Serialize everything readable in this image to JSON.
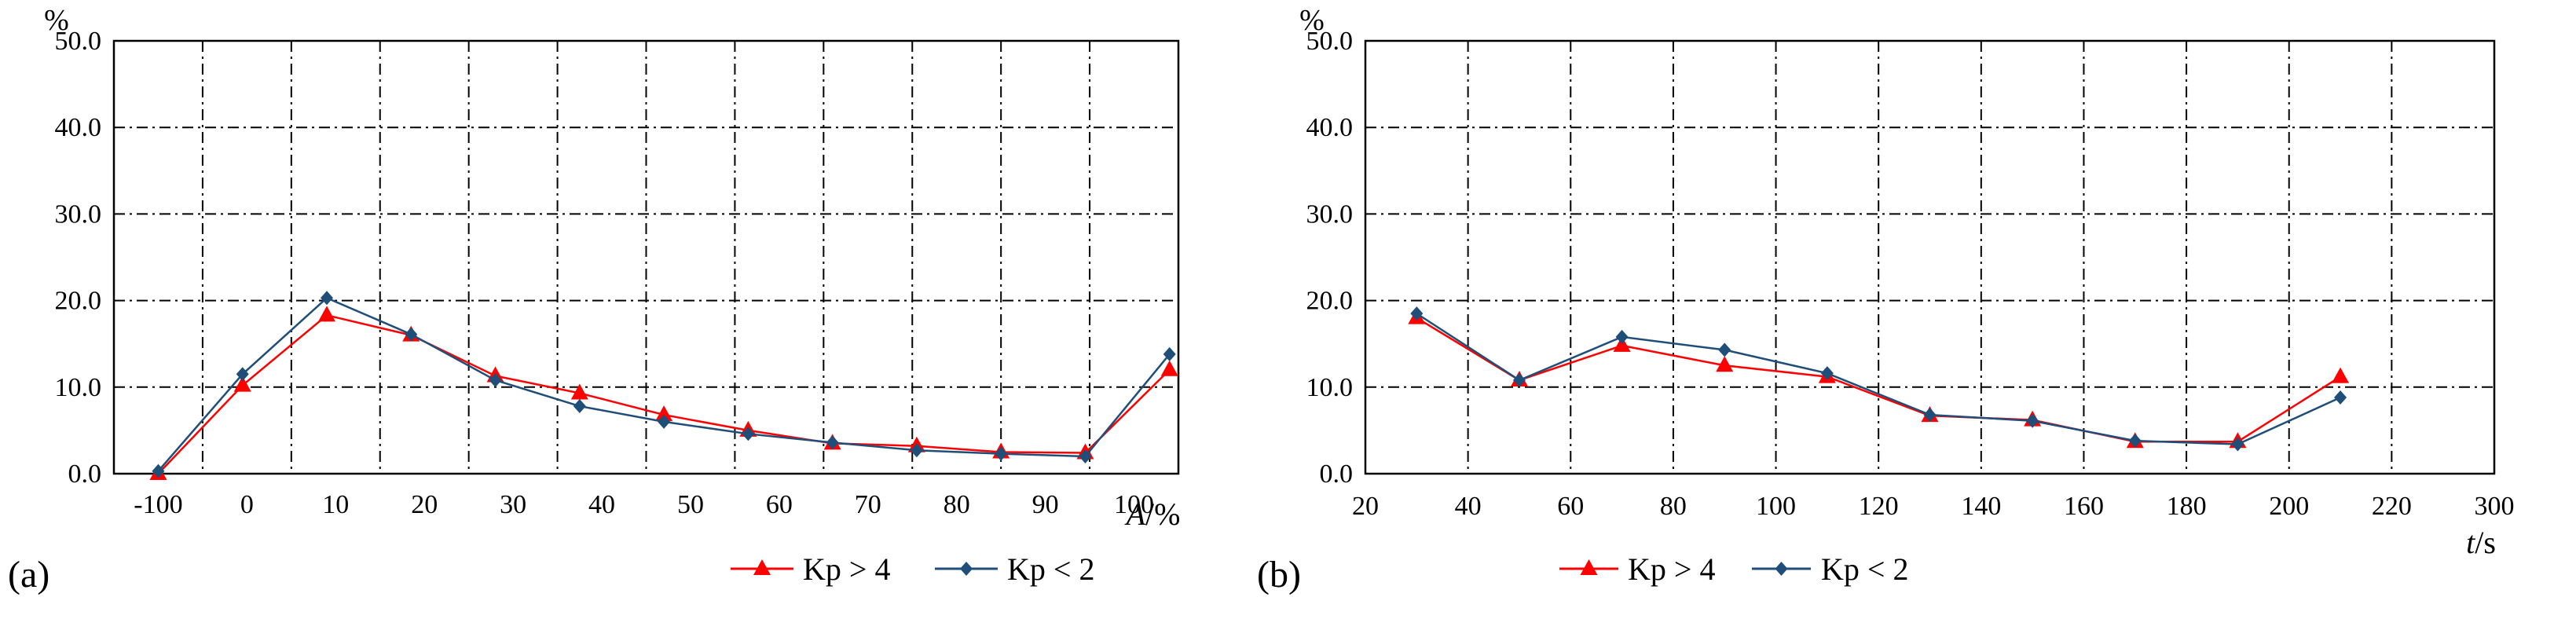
{
  "chart_data": [
    {
      "panel_label": "(a)",
      "type": "line",
      "ylabel": "%",
      "xlabel_italic": "A",
      "xlabel_unit": "/%",
      "ylim": [
        0,
        50
      ],
      "yticks": [
        "0.0",
        "10.0",
        "20.0",
        "30.0",
        "40.0",
        "50.0"
      ],
      "xticks": [
        "-100",
        "0",
        "10",
        "20",
        "30",
        "40",
        "50",
        "60",
        "70",
        "80",
        "90",
        "100"
      ],
      "grid": true,
      "legend_position": "bottom",
      "series": [
        {
          "name": "Kp > 4",
          "color": "#ff0000",
          "marker": "triangle",
          "values": [
            0.0,
            10.2,
            18.3,
            16.0,
            11.3,
            9.3,
            6.8,
            5.0,
            3.5,
            3.2,
            2.5,
            2.4,
            12.0
          ]
        },
        {
          "name": "Kp < 2",
          "color": "#1f4e79",
          "marker": "diamond",
          "values": [
            0.3,
            11.5,
            20.3,
            16.1,
            10.8,
            7.8,
            6.0,
            4.6,
            3.6,
            2.7,
            2.3,
            2.0,
            13.8
          ]
        }
      ]
    },
    {
      "panel_label": "(b)",
      "type": "line",
      "ylabel": "%",
      "xlabel_italic": "t",
      "xlabel_unit": "/s",
      "ylim": [
        0,
        50
      ],
      "xlim": [
        20,
        300
      ],
      "yticks": [
        "0.0",
        "10.0",
        "20.0",
        "30.0",
        "40.0",
        "50.0"
      ],
      "xticks": [
        "20",
        "40",
        "60",
        "80",
        "100",
        "120",
        "140",
        "160",
        "180",
        "200",
        "220",
        "300"
      ],
      "grid": true,
      "legend_position": "bottom",
      "series": [
        {
          "name": "Kp > 4",
          "color": "#ff0000",
          "marker": "triangle",
          "x": [
            30,
            50,
            70,
            90,
            110,
            130,
            150,
            170,
            190,
            210
          ],
          "values": [
            18.0,
            10.8,
            14.8,
            12.5,
            11.2,
            6.7,
            6.2,
            3.7,
            3.7,
            11.2
          ]
        },
        {
          "name": "Kp < 2",
          "color": "#1f4e79",
          "marker": "diamond",
          "x": [
            30,
            50,
            70,
            90,
            110,
            130,
            150,
            170,
            190,
            210
          ],
          "values": [
            18.5,
            10.8,
            15.8,
            14.3,
            11.6,
            6.8,
            6.1,
            3.8,
            3.4,
            8.8
          ]
        }
      ]
    }
  ]
}
